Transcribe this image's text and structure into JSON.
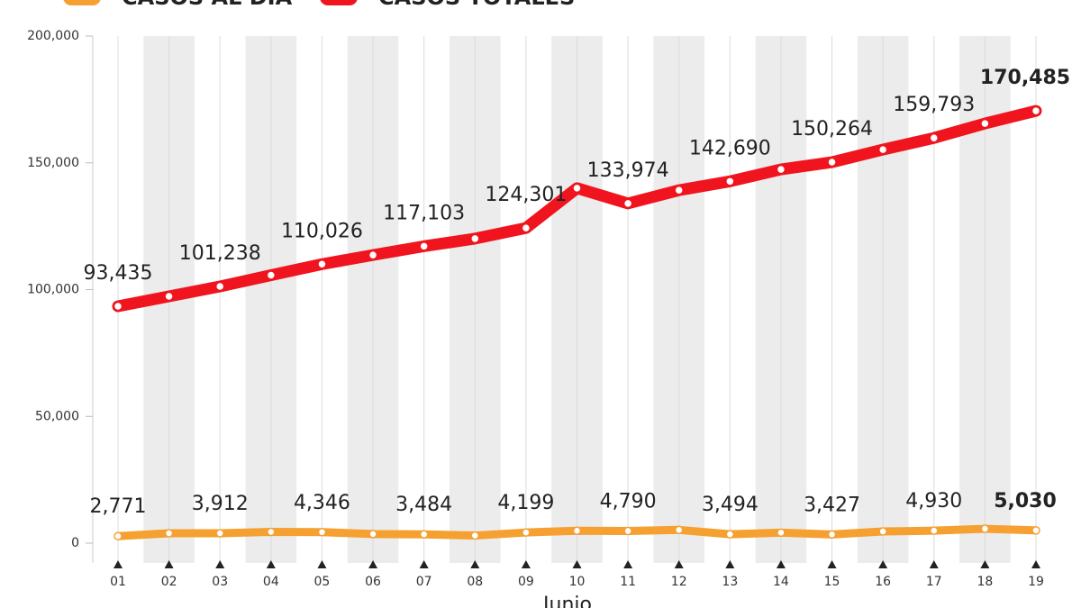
{
  "chart_data": {
    "type": "line",
    "x_label": "Junio",
    "categories": [
      "01",
      "02",
      "03",
      "04",
      "05",
      "06",
      "07",
      "08",
      "09",
      "10",
      "11",
      "12",
      "13",
      "14",
      "15",
      "16",
      "17",
      "18",
      "19"
    ],
    "series": [
      {
        "name": "CASOS AL DÍA",
        "color": "#f5a030",
        "values": [
          2771,
          3891,
          3912,
          4442,
          4346,
          3593,
          3484,
          2999,
          4199,
          4883,
          4790,
          5222,
          3494,
          4147,
          3427,
          4599,
          4930,
          5662,
          5030
        ],
        "value_labels": [
          "2,771",
          null,
          "3,912",
          null,
          "4,346",
          null,
          "3,484",
          null,
          "4,199",
          null,
          "4,790",
          null,
          "3,494",
          null,
          "3,427",
          null,
          "4,930",
          null,
          "5,030"
        ]
      },
      {
        "name": "CASOS TOTALES",
        "color": "#f0141e",
        "values": [
          93435,
          97326,
          101238,
          105680,
          110026,
          113619,
          117103,
          120102,
          124301,
          140000,
          133974,
          139196,
          142690,
          147400,
          150264,
          155200,
          159793,
          165500,
          170485
        ],
        "value_labels": [
          "93,435",
          null,
          "101,238",
          null,
          "110,026",
          null,
          "117,103",
          null,
          "124,301",
          null,
          "133,974",
          null,
          "142,690",
          null,
          "150,264",
          null,
          "159,793",
          null,
          "170,485"
        ]
      }
    ],
    "ylim": [
      0,
      200000
    ],
    "yticks": [
      0,
      {
        "value": 50000,
        "label": "50,000"
      },
      {
        "value": 100000,
        "label": "100,000"
      },
      {
        "value": 150000,
        "label": "150,000"
      },
      {
        "value": 200000,
        "label": "200,000"
      }
    ]
  }
}
